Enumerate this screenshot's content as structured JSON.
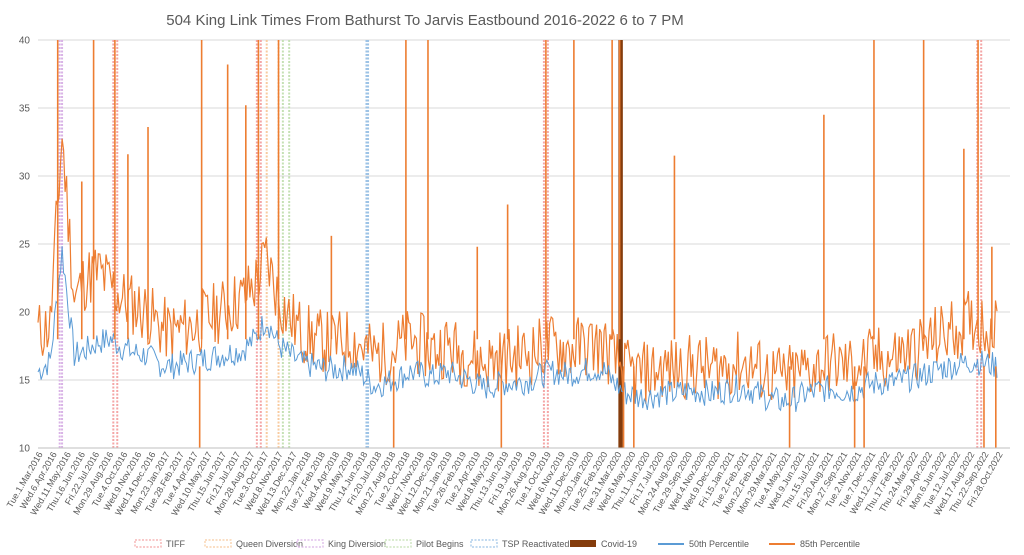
{
  "chart_data": {
    "type": "line",
    "title": "504 King Link Times From Bathurst To Jarvis Eastbound 2016-2022 6 to 7 PM",
    "xlabel": "",
    "ylabel": "",
    "ylim": [
      10,
      40
    ],
    "yticks": [
      10,
      15,
      20,
      25,
      30,
      35,
      40
    ],
    "grid": true,
    "legend_position": "bottom",
    "x_start": "2016-03-01",
    "x_end": "2022-11-30",
    "x_tick_labels": [
      "Tue.1.Mar.2016",
      "Wed.6.Apr.2016",
      "Wed.11.May.2016",
      "Thu.16.Jun.2016",
      "Fri.22.Jul.2016",
      "Mon.29.Aug.2016",
      "Tue.4.Oct.2016",
      "Wed.9.Nov.2016",
      "Wed.14.Dec.2016",
      "Mon.23.Jan.2017",
      "Tue.28.Feb.2017",
      "Tue.4.Apr.2017",
      "Wed.10.May.2017",
      "Thu.15.Jun.2017",
      "Fri.21.Jul.2017",
      "Mon.28.Aug.2017",
      "Tue.3.Oct.2017",
      "Wed.8.Nov.2017",
      "Wed.13.Dec.2017",
      "Mon.22.Jan.2018",
      "Tue.27.Feb.2018",
      "Wed.4.Apr.2018",
      "Wed.9.May.2018",
      "Thu.14.Jun.2018",
      "Fri.20.Jul.2018",
      "Mon.27.Aug.2018",
      "Tue.2.Oct.2018",
      "Wed.7.Nov.2018",
      "Wed.12.Dec.2018",
      "Mon.21.Jan.2019",
      "Tue.26.Feb.2019",
      "Tue.2.Apr.2019",
      "Wed.8.May.2019",
      "Thu.13.Jun.2019",
      "Fri.19.Jul.2019",
      "Mon.26.Aug.2019",
      "Tue.1.Oct.2019",
      "Wed.6.Nov.2019",
      "Wed.11.Dec.2019",
      "Mon.20.Jan.2020",
      "Tue.25.Feb.2020",
      "Tue.31.Mar.2020",
      "Wed.6.May.2020",
      "Thu.11.Jun.2020",
      "Fri.17.Jul.2020",
      "Mon.24.Aug.2020",
      "Tue.29.Sep.2020",
      "Wed.4.Nov.2020",
      "Wed.9.Dec.2020",
      "Fri.15.Jan.2021",
      "Tue.2.Feb.2021",
      "Mon.22.Feb.2021",
      "Mon.29.Mar.2021",
      "Tue.4.May.2021",
      "Wed.9.Jun.2021",
      "Thu.15.Jul.2021",
      "Fri.20.Aug.2021",
      "Mon.27.Sep.2021",
      "Tue.2.Nov.2021",
      "Tue.7.Dec.2021",
      "Wed.12.Jan.2022",
      "Thu.17.Feb.2022",
      "Thu.24.Mar.2022",
      "Fri.29.Apr.2022",
      "Mon.6.Jun.2022",
      "Tue.12.Jul.2022",
      "Wed.17.Aug.2022",
      "Thu.22.Sep.2022",
      "Fri.28.Oct.2022"
    ],
    "events": [
      {
        "name": "TIFF",
        "color": "#f4a6a6",
        "dates": [
          "2016-09-08",
          "2016-09-18",
          "2017-09-07",
          "2017-09-17",
          "2019-09-05",
          "2019-09-15",
          "2022-09-08",
          "2022-09-18"
        ]
      },
      {
        "name": "Queen Diversion",
        "color": "#f8cba0",
        "dates": [
          "2017-10-02",
          "2017-11-01"
        ]
      },
      {
        "name": "King Diversion",
        "color": "#d9b3e6",
        "dates": [
          "2016-04-25",
          "2016-05-01"
        ]
      },
      {
        "name": "Pilot Begins",
        "color": "#c5e0b4",
        "dates": [
          "2017-11-12",
          "2017-11-28"
        ]
      },
      {
        "name": "TSP Reactivated",
        "color": "#9dc3e6",
        "dates": [
          "2018-06-12",
          "2018-06-16"
        ]
      },
      {
        "name": "Covid-19",
        "color": "#843c0c",
        "dates": [
          "2020-03-15",
          "2020-03-20"
        ]
      }
    ],
    "series": [
      {
        "name": "50th Percentile",
        "color": "#5b9bd5",
        "x": [
          "2016-03-01",
          "2016-04-01",
          "2016-05-01",
          "2016-06-01",
          "2016-07-01",
          "2016-08-01",
          "2016-09-01",
          "2016-10-01",
          "2016-11-01",
          "2016-12-01",
          "2017-01-01",
          "2017-02-01",
          "2017-03-01",
          "2017-04-01",
          "2017-05-01",
          "2017-06-01",
          "2017-07-01",
          "2017-08-01",
          "2017-09-01",
          "2017-10-01",
          "2017-11-01",
          "2017-12-01",
          "2018-01-01",
          "2018-02-01",
          "2018-03-01",
          "2018-04-01",
          "2018-05-01",
          "2018-06-01",
          "2018-07-01",
          "2018-08-01",
          "2018-09-01",
          "2018-10-01",
          "2018-11-01",
          "2018-12-01",
          "2019-01-01",
          "2019-02-01",
          "2019-03-01",
          "2019-04-01",
          "2019-05-01",
          "2019-06-01",
          "2019-07-01",
          "2019-08-01",
          "2019-09-01",
          "2019-10-01",
          "2019-11-01",
          "2019-12-01",
          "2020-01-01",
          "2020-02-01",
          "2020-03-01",
          "2020-04-01",
          "2020-05-01",
          "2020-06-01",
          "2020-07-01",
          "2020-08-01",
          "2020-09-01",
          "2020-10-01",
          "2020-11-01",
          "2020-12-01",
          "2021-01-01",
          "2021-02-01",
          "2021-03-01",
          "2021-04-01",
          "2021-05-01",
          "2021-06-01",
          "2021-07-01",
          "2021-08-01",
          "2021-09-01",
          "2021-10-01",
          "2021-11-01",
          "2021-12-01",
          "2022-01-01",
          "2022-02-01",
          "2022-03-01",
          "2022-04-01",
          "2022-05-01",
          "2022-06-01",
          "2022-07-01",
          "2022-08-01",
          "2022-09-01",
          "2022-10-01",
          "2022-11-01"
        ],
        "values": [
          15.6,
          16.4,
          24.5,
          16.8,
          17.2,
          17.8,
          18.0,
          17.4,
          17.0,
          16.8,
          16.2,
          16.0,
          16.2,
          16.4,
          16.6,
          16.8,
          17.0,
          17.2,
          18.0,
          19.5,
          17.6,
          16.8,
          16.2,
          16.0,
          15.8,
          15.8,
          16.0,
          15.4,
          14.6,
          14.8,
          15.2,
          15.6,
          15.4,
          15.2,
          15.6,
          15.2,
          15.0,
          14.4,
          14.6,
          14.8,
          14.8,
          15.0,
          15.4,
          15.6,
          15.4,
          15.6,
          15.8,
          15.8,
          14.8,
          14.0,
          13.8,
          13.8,
          14.0,
          14.0,
          14.2,
          14.2,
          14.0,
          14.2,
          14.4,
          14.4,
          14.0,
          13.6,
          13.4,
          13.6,
          14.0,
          14.2,
          14.4,
          14.2,
          14.2,
          14.6,
          14.8,
          14.8,
          15.0,
          15.2,
          15.4,
          15.8,
          16.0,
          16.2,
          16.4,
          16.2,
          16.0
        ]
      },
      {
        "name": "85th Percentile",
        "color": "#ed7d31",
        "x": [
          "2016-03-01",
          "2016-04-01",
          "2016-05-01",
          "2016-06-01",
          "2016-07-01",
          "2016-08-01",
          "2016-09-01",
          "2016-10-01",
          "2016-11-01",
          "2016-12-01",
          "2017-01-01",
          "2017-02-01",
          "2017-03-01",
          "2017-04-01",
          "2017-05-01",
          "2017-06-01",
          "2017-07-01",
          "2017-08-01",
          "2017-09-01",
          "2017-10-01",
          "2017-11-01",
          "2017-12-01",
          "2018-01-01",
          "2018-02-01",
          "2018-03-01",
          "2018-04-01",
          "2018-05-01",
          "2018-06-01",
          "2018-07-01",
          "2018-08-01",
          "2018-09-01",
          "2018-10-01",
          "2018-11-01",
          "2018-12-01",
          "2019-01-01",
          "2019-02-01",
          "2019-03-01",
          "2019-04-01",
          "2019-05-01",
          "2019-06-01",
          "2019-07-01",
          "2019-08-01",
          "2019-09-01",
          "2019-10-01",
          "2019-11-01",
          "2019-12-01",
          "2020-01-01",
          "2020-02-01",
          "2020-03-01",
          "2020-04-01",
          "2020-05-01",
          "2020-06-01",
          "2020-07-01",
          "2020-08-01",
          "2020-09-01",
          "2020-10-01",
          "2020-11-01",
          "2020-12-01",
          "2021-01-01",
          "2021-02-01",
          "2021-03-01",
          "2021-04-01",
          "2021-05-01",
          "2021-06-01",
          "2021-07-01",
          "2021-08-01",
          "2021-09-01",
          "2021-10-01",
          "2021-11-01",
          "2021-12-01",
          "2022-01-01",
          "2022-02-01",
          "2022-03-01",
          "2022-04-01",
          "2022-05-01",
          "2022-06-01",
          "2022-07-01",
          "2022-08-01",
          "2022-09-01",
          "2022-10-01",
          "2022-11-01"
        ],
        "values": [
          18.5,
          19.0,
          33.0,
          21.0,
          22.5,
          23.0,
          22.0,
          21.0,
          20.5,
          20.0,
          19.0,
          18.5,
          18.8,
          19.0,
          19.5,
          20.0,
          20.5,
          21.0,
          22.0,
          24.0,
          21.0,
          19.5,
          18.5,
          18.0,
          17.8,
          17.8,
          18.0,
          17.5,
          16.8,
          17.0,
          17.5,
          18.0,
          17.5,
          17.2,
          17.6,
          17.0,
          16.8,
          16.2,
          16.5,
          16.6,
          16.8,
          17.0,
          17.4,
          17.6,
          17.2,
          17.4,
          17.6,
          17.5,
          16.5,
          15.6,
          15.4,
          15.6,
          15.8,
          15.8,
          16.0,
          16.0,
          15.8,
          16.0,
          16.2,
          16.2,
          15.8,
          15.4,
          15.2,
          15.4,
          15.8,
          16.0,
          16.4,
          16.0,
          16.0,
          16.4,
          16.6,
          16.6,
          17.0,
          17.2,
          17.6,
          18.2,
          18.6,
          19.0,
          19.4,
          19.0,
          18.6
        ]
      }
    ],
    "spikes": [
      {
        "date": "2016-04-20",
        "value": 40
      },
      {
        "date": "2016-06-20",
        "value": 29.6
      },
      {
        "date": "2016-07-20",
        "value": 40
      },
      {
        "date": "2016-09-12",
        "value": 40
      },
      {
        "date": "2016-10-15",
        "value": 31.6
      },
      {
        "date": "2016-12-05",
        "value": 33.6
      },
      {
        "date": "2017-04-20",
        "value": 40
      },
      {
        "date": "2017-06-25",
        "value": 38.2
      },
      {
        "date": "2017-08-10",
        "value": 35.2
      },
      {
        "date": "2017-09-11",
        "value": 40
      },
      {
        "date": "2017-11-01",
        "value": 40
      },
      {
        "date": "2018-03-15",
        "value": 25.6
      },
      {
        "date": "2018-09-20",
        "value": 40
      },
      {
        "date": "2018-11-15",
        "value": 40
      },
      {
        "date": "2019-03-20",
        "value": 24.8
      },
      {
        "date": "2019-06-05",
        "value": 27.9
      },
      {
        "date": "2019-09-10",
        "value": 40
      },
      {
        "date": "2019-11-20",
        "value": 40
      },
      {
        "date": "2020-02-25",
        "value": 40
      },
      {
        "date": "2020-03-15",
        "value": 40
      },
      {
        "date": "2020-08-01",
        "value": 31.5
      },
      {
        "date": "2021-08-15",
        "value": 34.5
      },
      {
        "date": "2021-12-20",
        "value": 40
      },
      {
        "date": "2022-04-25",
        "value": 40
      },
      {
        "date": "2022-08-05",
        "value": 32.0
      },
      {
        "date": "2022-09-10",
        "value": 40
      },
      {
        "date": "2022-10-15",
        "value": 24.8
      }
    ],
    "dips": [
      {
        "date": "2017-04-15",
        "value": 10
      },
      {
        "date": "2018-08-20",
        "value": 10
      },
      {
        "date": "2019-05-20",
        "value": 10
      },
      {
        "date": "2020-03-25",
        "value": 10
      },
      {
        "date": "2020-04-20",
        "value": 10
      },
      {
        "date": "2021-05-20",
        "value": 10
      },
      {
        "date": "2021-11-01",
        "value": 10
      },
      {
        "date": "2021-11-25",
        "value": 10
      },
      {
        "date": "2022-09-25",
        "value": 10
      },
      {
        "date": "2022-10-25",
        "value": 10
      }
    ]
  }
}
